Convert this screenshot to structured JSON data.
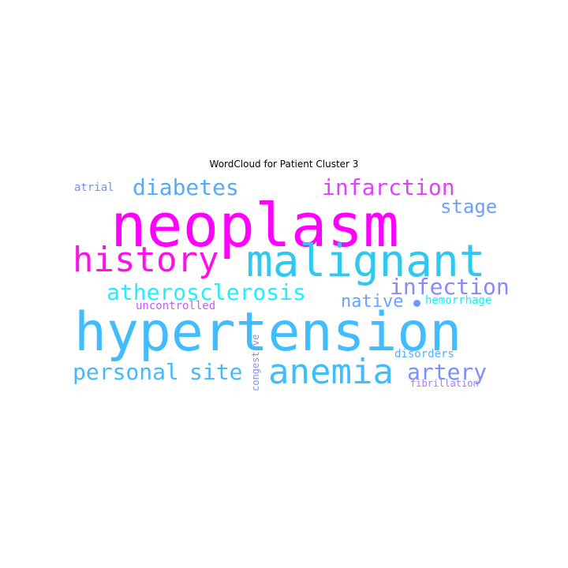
{
  "title": "WordCloud for Patient Cluster 3",
  "words": {
    "neoplasm": {
      "text": "neoplasm",
      "color": "#ff00ff"
    },
    "hypertension": {
      "text": "hypertension",
      "color": "#40bcff"
    },
    "malignant": {
      "text": "malignant",
      "color": "#30c8f0"
    },
    "history": {
      "text": "history",
      "color": "#ff10e8"
    },
    "anemia": {
      "text": "anemia",
      "color": "#40bcff"
    },
    "diabetes": {
      "text": "diabetes",
      "color": "#55aaff"
    },
    "infarction": {
      "text": "infarction",
      "color": "#e040ff"
    },
    "atherosclerosis": {
      "text": "atherosclerosis",
      "color": "#22eeff"
    },
    "infection": {
      "text": "infection",
      "color": "#8888ff"
    },
    "personal": {
      "text": "personal",
      "color": "#45b8ff"
    },
    "site": {
      "text": "site",
      "color": "#45b8ff"
    },
    "stage": {
      "text": "stage",
      "color": "#6aa0ff"
    },
    "artery": {
      "text": "artery",
      "color": "#7a90ff"
    },
    "native": {
      "text": "native",
      "color": "#6aa0ff"
    },
    "atrial": {
      "text": "atrial",
      "color": "#7090ff"
    },
    "uncontrolled": {
      "text": "uncontrolled",
      "color": "#cc55ff"
    },
    "hemorrhage": {
      "text": "hemorrhage",
      "color": "#11eeff"
    },
    "disorders": {
      "text": "disorders",
      "color": "#55b0ff"
    },
    "fibrillation": {
      "text": "fibrillation",
      "color": "#aa77ff"
    },
    "congestive": {
      "text": "congestive",
      "color": "#7a90ff"
    }
  },
  "dot_color": "#6a9cff"
}
